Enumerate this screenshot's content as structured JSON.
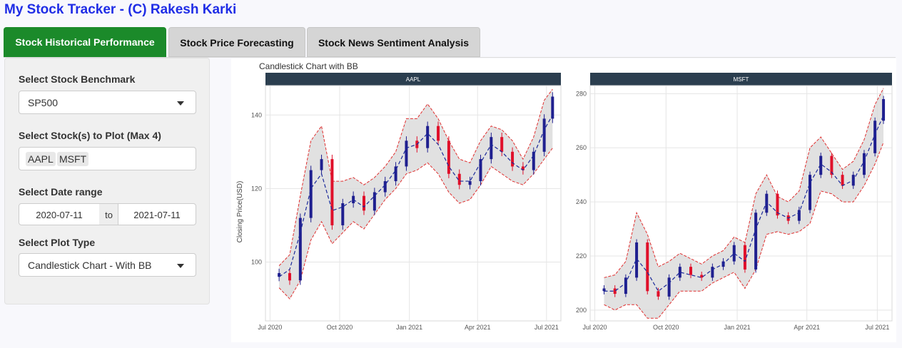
{
  "app": {
    "title": "My Stock Tracker - (C) Rakesh Karki"
  },
  "tabs": [
    {
      "label": "Stock Historical Performance",
      "active": true
    },
    {
      "label": "Stock Price Forecasting",
      "active": false
    },
    {
      "label": "Stock News Sentiment Analysis",
      "active": false
    }
  ],
  "sidebar": {
    "benchmark": {
      "label": "Select Stock Benchmark",
      "value": "SP500"
    },
    "stocks": {
      "label": "Select Stock(s) to Plot (Max 4)",
      "selected": [
        "AAPL",
        "MSFT"
      ]
    },
    "daterange": {
      "label": "Select Date range",
      "start": "2020-07-11",
      "separator": "to",
      "end": "2021-07-11"
    },
    "plottype": {
      "label": "Select Plot Type",
      "value": "Candlestick Chart - With BB"
    }
  },
  "colors": {
    "accent": "#1b8a2a",
    "title": "#1f2de6",
    "strip": "#2b3e4f",
    "candle_up": "#1f1f8f",
    "candle_down": "#e0102a",
    "band_fill": "#d9d9d9",
    "band_line": "#e03030",
    "ma_line": "#1b2a9a"
  },
  "chart_data": {
    "type": "candlestick",
    "title": "Candlestick Chart with BB",
    "ylabel": "Closing Price(USD)",
    "x_ticks": [
      "Jul 2020",
      "Oct 2020",
      "Jan 2021",
      "Apr 2021",
      "Jul 2021"
    ],
    "panels": [
      {
        "name": "AAPL",
        "ylim": [
          84,
          148
        ],
        "y_ticks": [
          100,
          120,
          140
        ],
        "x": [
          "2020-07-13",
          "2020-07-27",
          "2020-08-10",
          "2020-08-24",
          "2020-09-07",
          "2020-09-21",
          "2020-10-05",
          "2020-10-19",
          "2020-11-02",
          "2020-11-16",
          "2020-11-30",
          "2020-12-14",
          "2020-12-28",
          "2021-01-11",
          "2021-01-25",
          "2021-02-08",
          "2021-02-22",
          "2021-03-08",
          "2021-03-22",
          "2021-04-05",
          "2021-04-19",
          "2021-05-03",
          "2021-05-17",
          "2021-05-31",
          "2021-06-14",
          "2021-06-28",
          "2021-07-09"
        ],
        "close": [
          97,
          95,
          112,
          125,
          128,
          110,
          116,
          118,
          114,
          119,
          122,
          126,
          133,
          131,
          137,
          133,
          124,
          121,
          122,
          128,
          134,
          130,
          126,
          125,
          130,
          139,
          145
        ],
        "ma": [
          96,
          98,
          108,
          120,
          124,
          114,
          115,
          117,
          115,
          118,
          121,
          125,
          131,
          132,
          135,
          132,
          126,
          122,
          122,
          127,
          132,
          130,
          127,
          125,
          129,
          136,
          140
        ],
        "upper": [
          99,
          102,
          118,
          133,
          137,
          122,
          122,
          123,
          121,
          123,
          126,
          130,
          139,
          139,
          143,
          139,
          133,
          128,
          127,
          133,
          137,
          136,
          133,
          128,
          134,
          144,
          147
        ],
        "lower": [
          93,
          90,
          95,
          106,
          111,
          105,
          108,
          111,
          109,
          113,
          117,
          120,
          124,
          125,
          127,
          124,
          119,
          116,
          117,
          121,
          126,
          124,
          122,
          121,
          124,
          128,
          131
        ]
      },
      {
        "name": "MSFT",
        "ylim": [
          196,
          283
        ],
        "y_ticks": [
          200,
          220,
          240,
          260,
          280
        ],
        "x": [
          "2020-07-13",
          "2020-07-27",
          "2020-08-10",
          "2020-08-24",
          "2020-09-07",
          "2020-09-21",
          "2020-10-05",
          "2020-10-19",
          "2020-11-02",
          "2020-11-16",
          "2020-11-30",
          "2020-12-14",
          "2020-12-28",
          "2021-01-11",
          "2021-01-25",
          "2021-02-08",
          "2021-02-22",
          "2021-03-08",
          "2021-03-22",
          "2021-04-05",
          "2021-04-19",
          "2021-05-03",
          "2021-05-17",
          "2021-05-31",
          "2021-06-14",
          "2021-06-28",
          "2021-07-09"
        ],
        "close": [
          208,
          206,
          212,
          225,
          207,
          205,
          212,
          216,
          213,
          212,
          216,
          218,
          224,
          215,
          236,
          243,
          235,
          233,
          237,
          250,
          257,
          250,
          246,
          250,
          258,
          270,
          278
        ],
        "ma": [
          207,
          207,
          210,
          219,
          214,
          207,
          210,
          214,
          213,
          212,
          215,
          217,
          221,
          218,
          230,
          240,
          236,
          234,
          236,
          247,
          254,
          251,
          246,
          248,
          255,
          265,
          272
        ],
        "upper": [
          212,
          213,
          218,
          236,
          228,
          216,
          218,
          221,
          219,
          217,
          220,
          222,
          227,
          225,
          243,
          250,
          242,
          240,
          244,
          260,
          264,
          258,
          252,
          255,
          263,
          276,
          282
        ],
        "lower": [
          202,
          200,
          202,
          202,
          197,
          197,
          202,
          207,
          207,
          207,
          210,
          212,
          214,
          208,
          215,
          228,
          229,
          228,
          229,
          232,
          244,
          243,
          240,
          240,
          246,
          254,
          262
        ]
      }
    ],
    "grid": true,
    "legend": "none"
  }
}
